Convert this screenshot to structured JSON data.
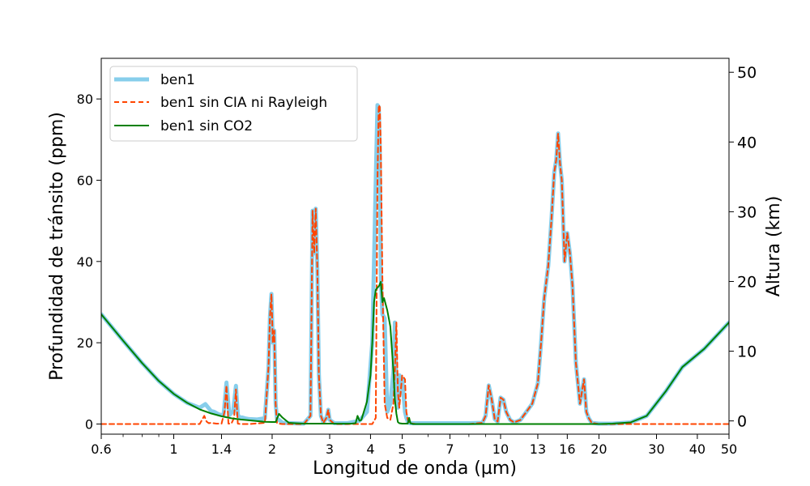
{
  "chart_data": {
    "type": "line",
    "xlabel": "Longitud de onda (µm)",
    "ylabel": "Profundidad de tránsito (ppm)",
    "y2label": "Altura (km)",
    "x_scale": "log",
    "xlim": [
      0.6,
      50
    ],
    "ylim": [
      -2.5,
      90
    ],
    "y2lim": [
      -1.9,
      52
    ],
    "x_ticks": [
      0.6,
      1,
      1.4,
      2,
      3,
      4,
      5,
      7,
      10,
      13,
      16,
      20,
      30,
      40,
      50
    ],
    "x_tick_labels": [
      "0.6",
      "1",
      "1.4",
      "2",
      "3",
      "4",
      "5",
      "7",
      "10",
      "13",
      "16",
      "20",
      "30",
      "40",
      "50"
    ],
    "y_ticks": [
      0,
      20,
      40,
      60,
      80
    ],
    "y_tick_labels": [
      "0",
      "20",
      "40",
      "60",
      "80"
    ],
    "y2_ticks": [
      0,
      10,
      20,
      30,
      40,
      50
    ],
    "y2_tick_labels": [
      "0",
      "10",
      "20",
      "30",
      "40",
      "50"
    ],
    "grid": false,
    "legend_position": "top-left",
    "series": [
      {
        "name": "ben1",
        "color": "#87ceeb",
        "style": "solid-thick",
        "x": [
          0.6,
          0.7,
          0.8,
          0.9,
          1.0,
          1.1,
          1.2,
          1.25,
          1.27,
          1.3,
          1.33,
          1.37,
          1.4,
          1.42,
          1.45,
          1.48,
          1.52,
          1.55,
          1.57,
          1.59,
          1.62,
          1.65,
          1.7,
          1.8,
          1.9,
          1.95,
          1.97,
          1.99,
          2.01,
          2.03,
          2.05,
          2.07,
          2.1,
          2.15,
          2.3,
          2.5,
          2.62,
          2.66,
          2.69,
          2.72,
          2.75,
          2.78,
          2.82,
          2.87,
          2.93,
          2.97,
          3.0,
          3.1,
          3.4,
          3.7,
          3.9,
          4.05,
          4.15,
          4.2,
          4.24,
          4.27,
          4.3,
          4.35,
          4.42,
          4.5,
          4.6,
          4.7,
          4.75,
          4.8,
          4.85,
          4.9,
          5.0,
          5.1,
          5.15,
          5.2,
          5.25,
          5.3,
          5.4,
          5.5,
          6.0,
          7.0,
          8.0,
          8.8,
          9.0,
          9.2,
          9.4,
          9.6,
          9.8,
          10.0,
          10.2,
          10.4,
          10.7,
          11.0,
          11.5,
          12.0,
          12.5,
          13.0,
          13.3,
          13.6,
          14.0,
          14.3,
          14.6,
          14.8,
          15.0,
          15.2,
          15.4,
          15.7,
          16.0,
          16.3,
          16.6,
          17.0,
          17.5,
          18.0,
          18.3,
          18.6,
          19.0,
          20.0,
          22.0,
          25.0,
          28.0,
          32.0,
          36.0,
          42.0,
          50.0
        ],
        "values": [
          27,
          20.5,
          15,
          10.6,
          7.4,
          5.2,
          4,
          4.9,
          4.2,
          3.2,
          3,
          2.4,
          2.2,
          2.1,
          10.2,
          2.2,
          3.2,
          9.4,
          2.3,
          1.6,
          1.6,
          1.4,
          1.2,
          1.1,
          1.4,
          14,
          26.5,
          32,
          20,
          23,
          5,
          1.2,
          1,
          0.3,
          0.2,
          0.1,
          2,
          52.5,
          42,
          53,
          38,
          12,
          2,
          0.4,
          1.5,
          3.5,
          1,
          0.2,
          0.2,
          0.8,
          3,
          20,
          60,
          78.5,
          78,
          68,
          36,
          27,
          26,
          3,
          5,
          13,
          25,
          8,
          4,
          12,
          11,
          3,
          1.5,
          0.6,
          0.3,
          0.2,
          0.2,
          0.2,
          0.2,
          0.2,
          0.2,
          0.3,
          2,
          9.5,
          6,
          1.2,
          0.6,
          6.5,
          6,
          3,
          1,
          0.4,
          1,
          3,
          5,
          10,
          20,
          31,
          39,
          50,
          62,
          65,
          71.5,
          64,
          60,
          40,
          47,
          42,
          34,
          15,
          5,
          11,
          3,
          1.5,
          0.3,
          0.1,
          0.1,
          0.4,
          2,
          8,
          14,
          18.5,
          25
        ]
      },
      {
        "name": "ben1 sin CIA ni Rayleigh",
        "color": "#ff4500",
        "style": "dashed",
        "x": [
          0.6,
          1.2,
          1.24,
          1.26,
          1.28,
          1.3,
          1.35,
          1.4,
          1.43,
          1.45,
          1.47,
          1.5,
          1.53,
          1.55,
          1.57,
          1.6,
          1.7,
          1.9,
          1.95,
          1.97,
          1.99,
          2.01,
          2.03,
          2.05,
          2.07,
          2.1,
          2.15,
          2.3,
          2.5,
          2.62,
          2.66,
          2.69,
          2.72,
          2.75,
          2.78,
          2.82,
          2.87,
          2.93,
          2.97,
          3.0,
          3.1,
          3.4,
          3.7,
          3.9,
          4.05,
          4.15,
          4.2,
          4.24,
          4.27,
          4.3,
          4.35,
          4.42,
          4.5,
          4.6,
          4.7,
          4.75,
          4.8,
          4.85,
          4.9,
          5.0,
          5.1,
          5.15,
          5.2,
          5.3,
          5.5,
          6.0,
          7.0,
          8.0,
          8.8,
          9.0,
          9.2,
          9.4,
          9.6,
          9.8,
          10.0,
          10.2,
          10.4,
          10.7,
          11.0,
          11.5,
          12.0,
          12.5,
          13.0,
          13.3,
          13.6,
          14.0,
          14.3,
          14.6,
          14.8,
          15.0,
          15.2,
          15.4,
          15.7,
          16.0,
          16.3,
          16.6,
          17.0,
          17.5,
          18.0,
          18.3,
          18.6,
          19.0,
          20.0,
          50.0
        ],
        "values": [
          0,
          0,
          2,
          0.6,
          0.2,
          0.3,
          0.1,
          0.1,
          3,
          9.5,
          0.1,
          0.1,
          1.5,
          8.5,
          0.1,
          0,
          0,
          0.3,
          14,
          26.5,
          32,
          20,
          23,
          5,
          0.2,
          0.1,
          0,
          0,
          0,
          2,
          52.5,
          42,
          53,
          38,
          12,
          2,
          0.3,
          1.5,
          3.5,
          1,
          0,
          0,
          0,
          0,
          0,
          1.5,
          60,
          78.5,
          78,
          68,
          36,
          5,
          1.5,
          1,
          5,
          13,
          25,
          8,
          4,
          12,
          11,
          3,
          1,
          0.2,
          0,
          0,
          0,
          0,
          0.3,
          2,
          9.5,
          6,
          1.2,
          0.6,
          6.5,
          6,
          3,
          1,
          0.4,
          1,
          3,
          5,
          10,
          20,
          31,
          39,
          50,
          62,
          65,
          71.5,
          64,
          60,
          40,
          47,
          42,
          34,
          15,
          5,
          11,
          3,
          1.5,
          0.3,
          0,
          0
        ]
      },
      {
        "name": "ben1 sin CO2",
        "color": "#008000",
        "style": "solid",
        "x": [
          0.6,
          0.7,
          0.8,
          0.9,
          1.0,
          1.1,
          1.2,
          1.3,
          1.4,
          1.5,
          1.6,
          1.7,
          1.8,
          1.9,
          2.0,
          2.05,
          2.1,
          2.15,
          2.25,
          2.35,
          2.5,
          2.7,
          3.0,
          3.3,
          3.5,
          3.6,
          3.65,
          3.7,
          3.75,
          3.8,
          3.9,
          4.0,
          4.05,
          4.1,
          4.15,
          4.25,
          4.3,
          4.35,
          4.4,
          4.5,
          4.6,
          4.7,
          4.75,
          4.8,
          4.85,
          4.9,
          5.0,
          5.2,
          5.25,
          5.3,
          5.35,
          5.4,
          6.0,
          8.0,
          12.0,
          16.0,
          20.0,
          22.0,
          25.0,
          28.0,
          32.0,
          36.0,
          42.0,
          50.0
        ],
        "values": [
          27,
          20.5,
          15,
          10.6,
          7.4,
          5.2,
          3.6,
          2.6,
          1.9,
          1.4,
          1.1,
          0.9,
          0.7,
          0.55,
          0.5,
          0.5,
          2.5,
          1.6,
          0.3,
          0.2,
          0.1,
          0.1,
          0.1,
          0.1,
          0.1,
          0.2,
          2,
          0.8,
          1,
          2.5,
          5.5,
          12,
          20,
          30,
          33,
          34,
          35,
          30,
          31,
          28,
          24,
          13,
          6,
          2.5,
          0.5,
          0.2,
          0.1,
          0.1,
          1.5,
          0.2,
          0.1,
          0,
          0,
          0,
          0,
          0,
          0,
          0.1,
          0.4,
          2,
          8,
          14,
          18.5,
          25
        ]
      }
    ]
  }
}
